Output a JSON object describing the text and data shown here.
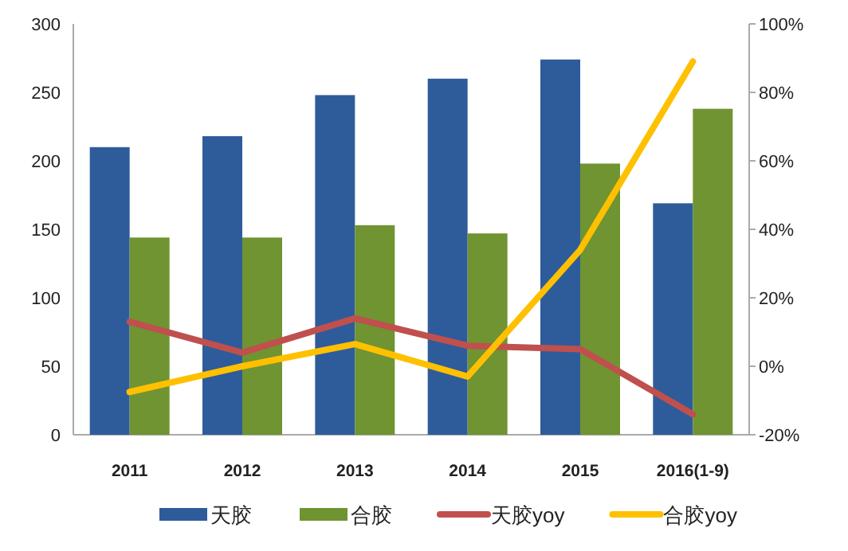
{
  "chart_data": {
    "type": "bar",
    "categories": [
      "2011",
      "2012",
      "2013",
      "2014",
      "2015",
      "2016(1-9)"
    ],
    "series": [
      {
        "name": "天胶",
        "color": "#2e5c9a",
        "values": [
          210,
          218,
          248,
          260,
          274,
          169
        ]
      },
      {
        "name": "合胶",
        "color": "#6f9431",
        "values": [
          144,
          144,
          153,
          147,
          198,
          238
        ]
      },
      {
        "name": "天胶yoy",
        "type": "line",
        "axis": "y2",
        "color": "#c0504d",
        "values": [
          13,
          4,
          14,
          6,
          5,
          -14
        ]
      },
      {
        "name": "合胶yoy",
        "type": "line",
        "axis": "y2",
        "color": "#ffc000",
        "values": [
          -7.5,
          0,
          6.5,
          -3,
          34,
          89
        ]
      }
    ],
    "ylim": [
      0,
      300
    ],
    "yticks": [
      0,
      50,
      100,
      150,
      200,
      250,
      300
    ],
    "y2lim": [
      -20,
      100
    ],
    "y2ticks": [
      {
        "value": -20,
        "label": "-20%"
      },
      {
        "value": 0,
        "label": "0%"
      },
      {
        "value": 20,
        "label": "20%"
      },
      {
        "value": 40,
        "label": "40%"
      },
      {
        "value": 60,
        "label": "60%"
      },
      {
        "value": 80,
        "label": "80%"
      },
      {
        "value": 100,
        "label": "100%"
      }
    ],
    "grid": false,
    "legend": "bottom",
    "marker": "none",
    "line_style": "solid"
  }
}
